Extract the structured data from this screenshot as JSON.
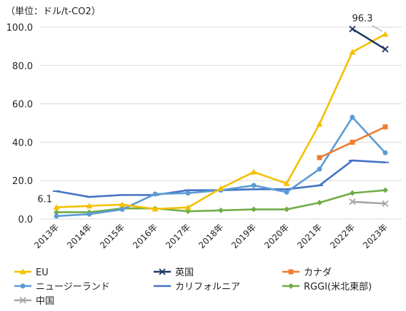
{
  "chart_data": {
    "type": "line",
    "unit_label": "（単位：ドル/t-CO2）",
    "categories": [
      "2013年",
      "2014年",
      "2015年",
      "2016年",
      "2017年",
      "2018年",
      "2019年",
      "2020年",
      "2021年",
      "2022年",
      "2023年"
    ],
    "ylim": [
      0,
      100
    ],
    "yticks": [
      "0.0",
      "20.0",
      "40.0",
      "60.0",
      "80.0",
      "100.0"
    ],
    "ytick_values": [
      0,
      20,
      40,
      60,
      80,
      100
    ],
    "grid": true,
    "legend_position": "bottom",
    "series": [
      {
        "name": "EU",
        "color": "#F5C000",
        "marker": "triangle",
        "values": [
          6.1,
          6.8,
          7.5,
          5.2,
          6.0,
          16.0,
          24.5,
          18.5,
          49.5,
          87.0,
          96.3
        ]
      },
      {
        "name": "英国",
        "color": "#1F3864",
        "marker": "x",
        "values": [
          null,
          null,
          null,
          null,
          null,
          null,
          null,
          null,
          null,
          99.0,
          88.5
        ]
      },
      {
        "name": "カナダ",
        "color": "#ED7D31",
        "marker": "square",
        "values": [
          null,
          null,
          null,
          null,
          null,
          null,
          null,
          null,
          32.0,
          40.0,
          48.0
        ]
      },
      {
        "name": "ニュージーランド",
        "color": "#5B9BD5",
        "marker": "circle",
        "values": [
          1.5,
          2.5,
          5.0,
          13.0,
          13.5,
          15.0,
          17.5,
          14.0,
          26.0,
          53.0,
          34.5
        ]
      },
      {
        "name": "カリフォルニア",
        "color": "#4472C4",
        "marker": "dash",
        "values": [
          14.5,
          11.5,
          12.5,
          12.5,
          15.0,
          15.0,
          15.5,
          15.5,
          17.5,
          30.5,
          29.5
        ]
      },
      {
        "name": "RGGI(米北東部)",
        "color": "#70AD47",
        "marker": "diamond",
        "values": [
          3.5,
          3.5,
          5.5,
          5.5,
          4.0,
          4.5,
          5.0,
          5.0,
          8.5,
          13.5,
          15.0
        ]
      },
      {
        "name": "中国",
        "color": "#A6A6A6",
        "marker": "x",
        "values": [
          null,
          null,
          null,
          null,
          null,
          null,
          null,
          null,
          null,
          9.0,
          8.0
        ]
      }
    ],
    "annotations": [
      {
        "text": "6.1",
        "series": "EU",
        "index": 0
      },
      {
        "text": "96.3",
        "series": "EU",
        "index": 10
      }
    ]
  }
}
